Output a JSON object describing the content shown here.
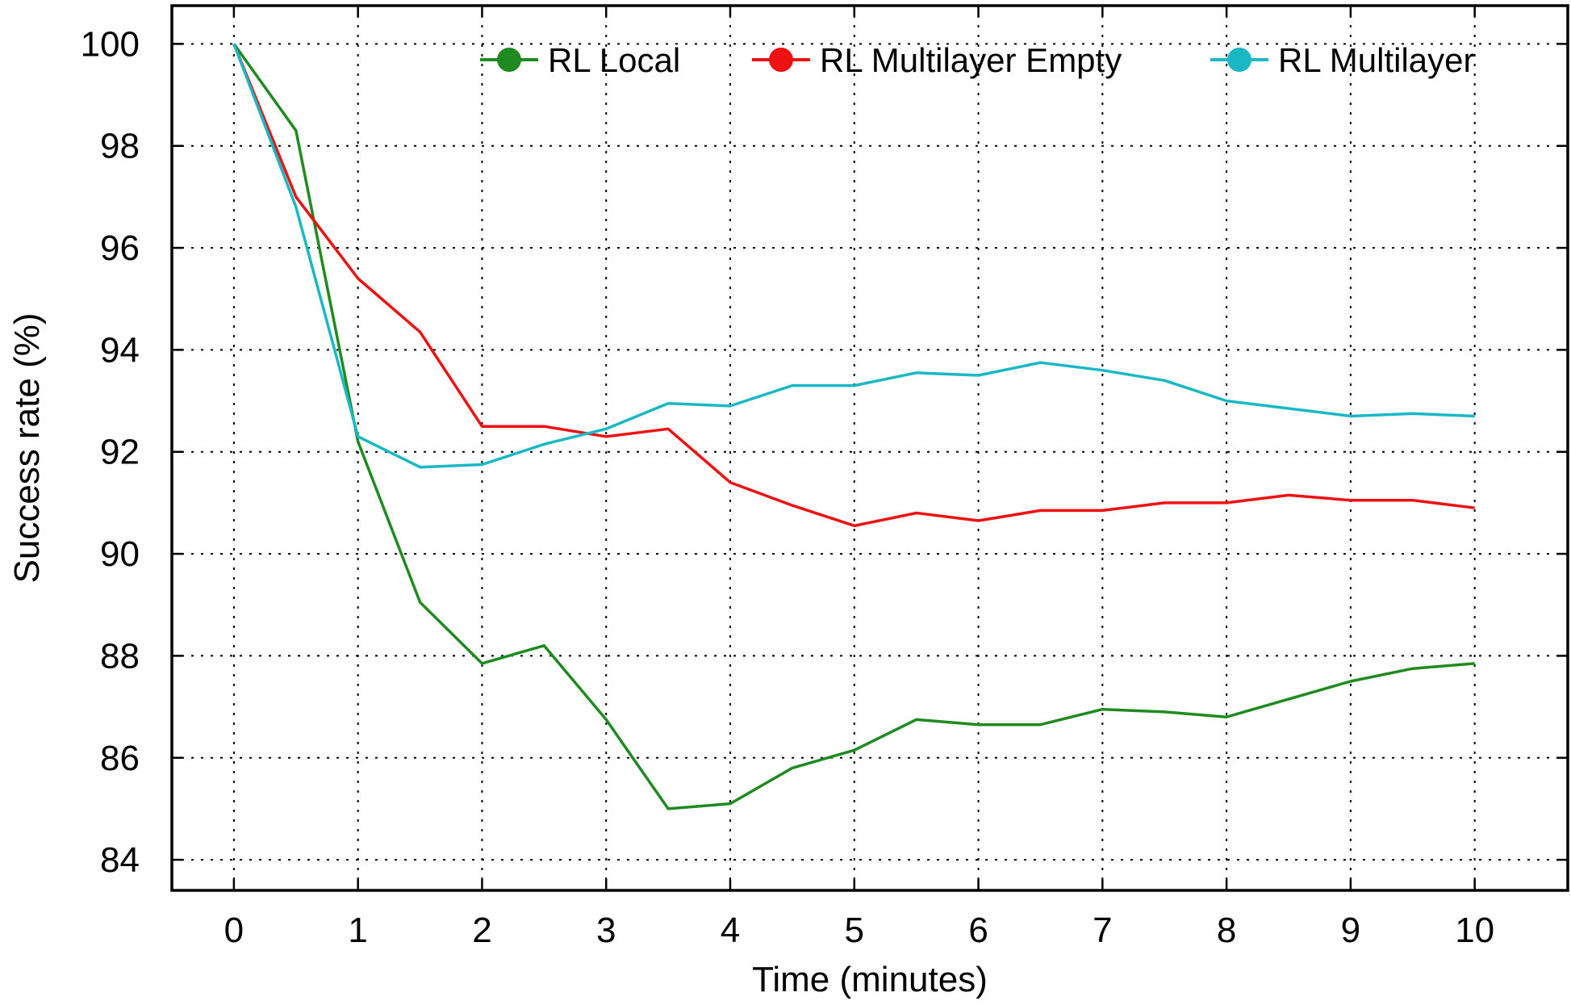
{
  "chart_data": {
    "type": "line",
    "xlabel": "Time (minutes)",
    "ylabel": "Success rate (%)",
    "xlim": [
      -0.5,
      10.75
    ],
    "ylim": [
      83.4,
      100.75
    ],
    "xticks": [
      "0",
      "1",
      "2",
      "3",
      "4",
      "5",
      "6",
      "7",
      "8",
      "9",
      "10"
    ],
    "yticks": [
      "84",
      "86",
      "88",
      "90",
      "92",
      "94",
      "96",
      "98",
      "100"
    ],
    "grid": true,
    "legend_position": "top",
    "x": [
      0,
      0.5,
      1,
      1.5,
      2,
      2.5,
      3,
      3.5,
      4,
      4.5,
      5,
      5.5,
      6,
      6.5,
      7,
      7.5,
      8,
      8.5,
      9,
      9.5,
      10
    ],
    "series": [
      {
        "name": "RL Local",
        "color": "#1f8a1f",
        "values": [
          100,
          98.3,
          92.2,
          89.05,
          87.85,
          88.2,
          86.75,
          85.0,
          85.1,
          85.8,
          86.15,
          86.75,
          86.65,
          86.65,
          86.95,
          86.9,
          86.8,
          87.15,
          87.5,
          87.75,
          87.85
        ]
      },
      {
        "name": "RL Multilayer Empty",
        "color": "#ee1111",
        "values": [
          100,
          97.0,
          95.4,
          94.35,
          92.5,
          92.5,
          92.3,
          92.45,
          91.4,
          90.95,
          90.55,
          90.8,
          90.65,
          90.85,
          90.85,
          91.0,
          91.0,
          91.15,
          91.05,
          91.05,
          90.9
        ]
      },
      {
        "name": "RL Multilayer",
        "color": "#1ab8c4",
        "values": [
          100,
          96.8,
          92.3,
          91.7,
          91.75,
          92.15,
          92.45,
          92.95,
          92.9,
          93.3,
          93.3,
          93.55,
          93.5,
          93.75,
          93.6,
          93.4,
          93.0,
          92.85,
          92.7,
          92.75,
          92.7
        ]
      }
    ]
  }
}
